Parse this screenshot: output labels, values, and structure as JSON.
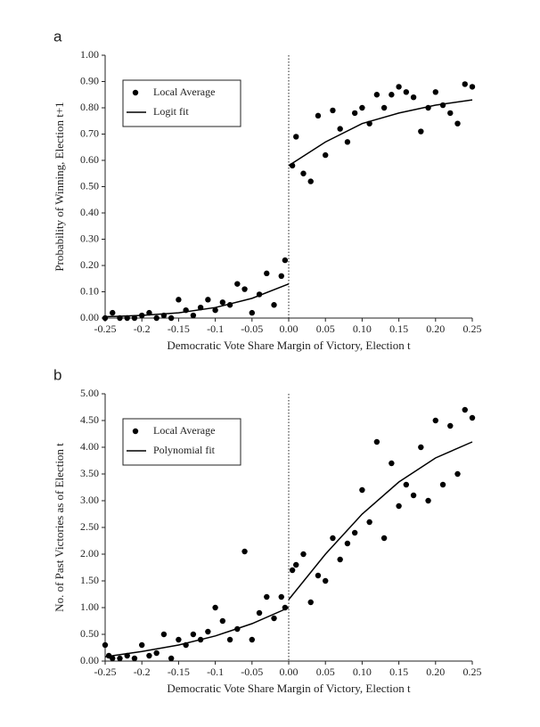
{
  "chart_data": [
    {
      "type": "scatter",
      "panel_label": "a",
      "xlabel": "Democratic Vote Share Margin of  Victory, Election t",
      "ylabel": "Probability of  Winning, Election t+1",
      "xlim": [
        -0.25,
        0.25
      ],
      "ylim": [
        0,
        1
      ],
      "xticks": [
        -0.25,
        -0.2,
        -0.15,
        -0.1,
        -0.05,
        {
          "value": 0,
          "label": "0.00"
        },
        0.05,
        {
          "value": 0.1,
          "label": "0.10"
        },
        0.15,
        {
          "value": 0.2,
          "label": "0.20"
        },
        0.25
      ],
      "yticks": [
        {
          "value": 0,
          "label": "0.00"
        },
        {
          "value": 0.1,
          "label": "0.10"
        },
        {
          "value": 0.2,
          "label": "0.20"
        },
        {
          "value": 0.3,
          "label": "0.30"
        },
        {
          "value": 0.4,
          "label": "0.40"
        },
        {
          "value": 0.5,
          "label": "0.50"
        },
        {
          "value": 0.6,
          "label": "0.60"
        },
        {
          "value": 0.7,
          "label": "0.70"
        },
        {
          "value": 0.8,
          "label": "0.80"
        },
        {
          "value": 0.9,
          "label": "0.90"
        },
        {
          "value": 1,
          "label": "1.00"
        }
      ],
      "vline": 0,
      "vline_style": "dotted",
      "legend": "upper left",
      "series": [
        {
          "name": "Local Average",
          "style": "marker",
          "color": "#000000",
          "x": [
            -0.25,
            -0.24,
            -0.23,
            -0.22,
            -0.21,
            -0.2,
            -0.19,
            -0.18,
            -0.17,
            -0.16,
            -0.15,
            -0.14,
            -0.13,
            -0.12,
            -0.11,
            -0.1,
            -0.09,
            -0.08,
            -0.07,
            -0.06,
            -0.05,
            -0.04,
            -0.03,
            -0.02,
            -0.01,
            -0.005,
            0.005,
            0.01,
            0.02,
            0.03,
            0.04,
            0.05,
            0.06,
            0.07,
            0.08,
            0.09,
            0.1,
            0.11,
            0.12,
            0.13,
            0.14,
            0.15,
            0.16,
            0.17,
            0.18,
            0.19,
            0.2,
            0.21,
            0.22,
            0.23,
            0.24,
            0.25
          ],
          "values": [
            0,
            0.02,
            0,
            0,
            0,
            0.01,
            0.02,
            0,
            0.01,
            0,
            0.07,
            0.03,
            0.01,
            0.04,
            0.07,
            0.03,
            0.06,
            0.05,
            0.13,
            0.11,
            0.02,
            0.09,
            0.17,
            0.05,
            0.16,
            0.22,
            0.58,
            0.69,
            0.55,
            0.52,
            0.77,
            0.62,
            0.79,
            0.72,
            0.67,
            0.78,
            0.8,
            0.74,
            0.85,
            0.8,
            0.85,
            0.88,
            0.86,
            0.84,
            0.71,
            0.8,
            0.86,
            0.81,
            0.78,
            0.74,
            0.89,
            0.88
          ]
        },
        {
          "name": "Logit fit",
          "style": "line",
          "color": "#000000",
          "x": [
            -0.25,
            -0.2,
            -0.15,
            -0.1,
            -0.05,
            0,
            0,
            0,
            0.05,
            0.1,
            0.15,
            0.2,
            0.25
          ],
          "values": [
            0.005,
            0.01,
            0.02,
            0.04,
            0.075,
            0.13,
            null,
            0.58,
            0.67,
            0.74,
            0.78,
            0.81,
            0.83
          ]
        }
      ]
    },
    {
      "type": "scatter",
      "panel_label": "b",
      "xlabel": "Democratic Vote Share Margin of Victory, Election t",
      "ylabel": "No. of  Past Victories as of  Election t",
      "xlim": [
        -0.25,
        0.25
      ],
      "ylim": [
        0,
        5
      ],
      "xticks": [
        -0.25,
        -0.2,
        -0.15,
        -0.1,
        -0.05,
        {
          "value": 0,
          "label": "0.00"
        },
        0.05,
        {
          "value": 0.1,
          "label": "0.10"
        },
        0.15,
        {
          "value": 0.2,
          "label": "0.20"
        },
        0.25
      ],
      "yticks": [
        {
          "value": 0,
          "label": "0.00"
        },
        {
          "value": 0.5,
          "label": "0.50"
        },
        {
          "value": 1,
          "label": "1.00"
        },
        {
          "value": 1.5,
          "label": "1.50"
        },
        {
          "value": 2,
          "label": "2.00"
        },
        {
          "value": 2.5,
          "label": "2.50"
        },
        {
          "value": 3,
          "label": "3.00"
        },
        {
          "value": 3.5,
          "label": "3.50"
        },
        {
          "value": 4,
          "label": "4.00"
        },
        {
          "value": 4.5,
          "label": "4.50"
        },
        {
          "value": 5,
          "label": "5.00"
        }
      ],
      "vline": 0,
      "vline_style": "dotted",
      "legend": "upper left",
      "series": [
        {
          "name": "Local Average",
          "style": "marker",
          "color": "#000000",
          "x": [
            -0.25,
            -0.245,
            -0.24,
            -0.23,
            -0.22,
            -0.21,
            -0.2,
            -0.19,
            -0.18,
            -0.17,
            -0.16,
            -0.15,
            -0.14,
            -0.13,
            -0.12,
            -0.11,
            -0.1,
            -0.09,
            -0.08,
            -0.07,
            -0.06,
            -0.05,
            -0.04,
            -0.03,
            -0.02,
            -0.01,
            -0.005,
            0.005,
            0.01,
            0.02,
            0.03,
            0.04,
            0.05,
            0.06,
            0.07,
            0.08,
            0.09,
            0.1,
            0.11,
            0.12,
            0.13,
            0.14,
            0.15,
            0.16,
            0.17,
            0.18,
            0.19,
            0.2,
            0.21,
            0.22,
            0.23,
            0.24,
            0.25
          ],
          "values": [
            0.3,
            0.1,
            0.05,
            0.05,
            0.1,
            0.05,
            0.3,
            0.1,
            0.15,
            0.5,
            0.05,
            0.4,
            0.3,
            0.5,
            0.4,
            0.55,
            1.0,
            0.75,
            0.4,
            0.6,
            2.05,
            0.4,
            0.9,
            1.2,
            0.8,
            1.2,
            1.0,
            1.7,
            1.8,
            2.0,
            1.1,
            1.6,
            1.5,
            2.3,
            1.9,
            2.2,
            2.4,
            3.2,
            2.6,
            4.1,
            2.3,
            3.7,
            2.9,
            3.3,
            3.1,
            4.0,
            3.0,
            4.5,
            3.3,
            4.4,
            3.5,
            4.7,
            4.55
          ]
        },
        {
          "name": "Polynomial fit",
          "style": "line",
          "color": "#000000",
          "x": [
            -0.25,
            -0.2,
            -0.15,
            -0.1,
            -0.05,
            0,
            0,
            0,
            0.05,
            0.1,
            0.15,
            0.2,
            0.25
          ],
          "values": [
            0.08,
            0.18,
            0.3,
            0.47,
            0.7,
            1.0,
            null,
            1.15,
            2.0,
            2.75,
            3.35,
            3.8,
            4.1
          ]
        }
      ]
    }
  ]
}
